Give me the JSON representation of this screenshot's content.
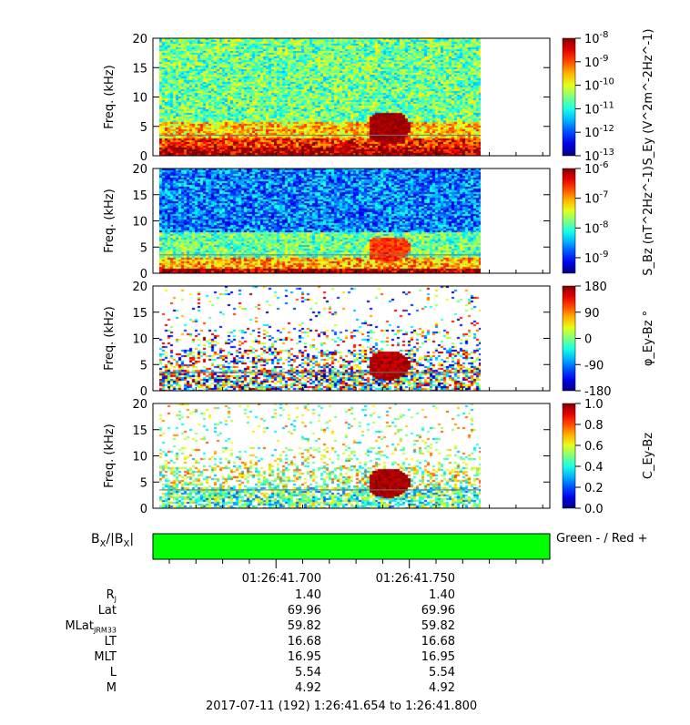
{
  "chart_data": [
    {
      "type": "heatmap",
      "ylabel": "Freq. (kHz)",
      "yticks": [
        "0",
        "5",
        "10",
        "15",
        "20"
      ],
      "ylim": [
        0,
        20
      ],
      "colorbar": {
        "label": "S_Ey (V^2m^-2Hz^-1)",
        "ticks": [
          "10-8",
          "10-9",
          "10-10",
          "10-11",
          "10-12",
          "10-13"
        ],
        "scale": "log",
        "range": [
          1e-13,
          1e-08
        ]
      },
      "colormap": "rainbow"
    },
    {
      "type": "heatmap",
      "ylabel": "Freq. (kHz)",
      "yticks": [
        "0",
        "5",
        "10",
        "15",
        "20"
      ],
      "ylim": [
        0,
        20
      ],
      "colorbar": {
        "label": "S_Bz (nT^2Hz^-1)",
        "ticks": [
          "10-6",
          "10-7",
          "10-8",
          "10-9"
        ],
        "scale": "log",
        "range": [
          3e-10,
          1e-06
        ]
      },
      "colormap": "rainbow"
    },
    {
      "type": "heatmap",
      "ylabel": "Freq. (kHz)",
      "yticks": [
        "0",
        "5",
        "10",
        "15",
        "20"
      ],
      "ylim": [
        0,
        20
      ],
      "colorbar": {
        "label": "φ_Ey-Bz °",
        "ticks": [
          "180",
          "90",
          "0",
          "-90",
          "-180"
        ],
        "scale": "linear",
        "range": [
          -180,
          180
        ]
      },
      "colormap": "rainbow"
    },
    {
      "type": "heatmap",
      "ylabel": "Freq. (kHz)",
      "yticks": [
        "0",
        "5",
        "10",
        "15",
        "20"
      ],
      "ylim": [
        0,
        20
      ],
      "colorbar": {
        "label": "C_Ey-Bz",
        "ticks": [
          "1.0",
          "0.8",
          "0.6",
          "0.4",
          "0.2",
          "0.0"
        ],
        "scale": "linear",
        "range": [
          0,
          1
        ]
      },
      "colormap": "rainbow"
    }
  ],
  "bx_bar": {
    "label_main": "B",
    "label_sub": "X",
    "label_mid": "/|B",
    "label_sub2": "X",
    "label_end": "|",
    "legend": "Green - / Red +",
    "color": "#00ff00"
  },
  "ephemeris": {
    "times": [
      "01:26:41.700",
      "01:26:41.750"
    ],
    "rows": [
      {
        "label": "R",
        "sub": "J",
        "values": [
          "1.40",
          "1.40"
        ]
      },
      {
        "label": "Lat",
        "sub": "",
        "values": [
          "69.96",
          "69.96"
        ]
      },
      {
        "label": "MLat",
        "sub": "JRM33",
        "values": [
          "59.82",
          "59.82"
        ]
      },
      {
        "label": "LT",
        "sub": "",
        "values": [
          "16.68",
          "16.68"
        ]
      },
      {
        "label": "MLT",
        "sub": "",
        "values": [
          "16.95",
          "16.95"
        ]
      },
      {
        "label": "L",
        "sub": "",
        "values": [
          "5.54",
          "5.54"
        ]
      },
      {
        "label": "M",
        "sub": "",
        "values": [
          "4.92",
          "4.92"
        ]
      }
    ],
    "range_label": "2017-07-11 (192) 1:26:41.654 to 1:26:41.800"
  }
}
